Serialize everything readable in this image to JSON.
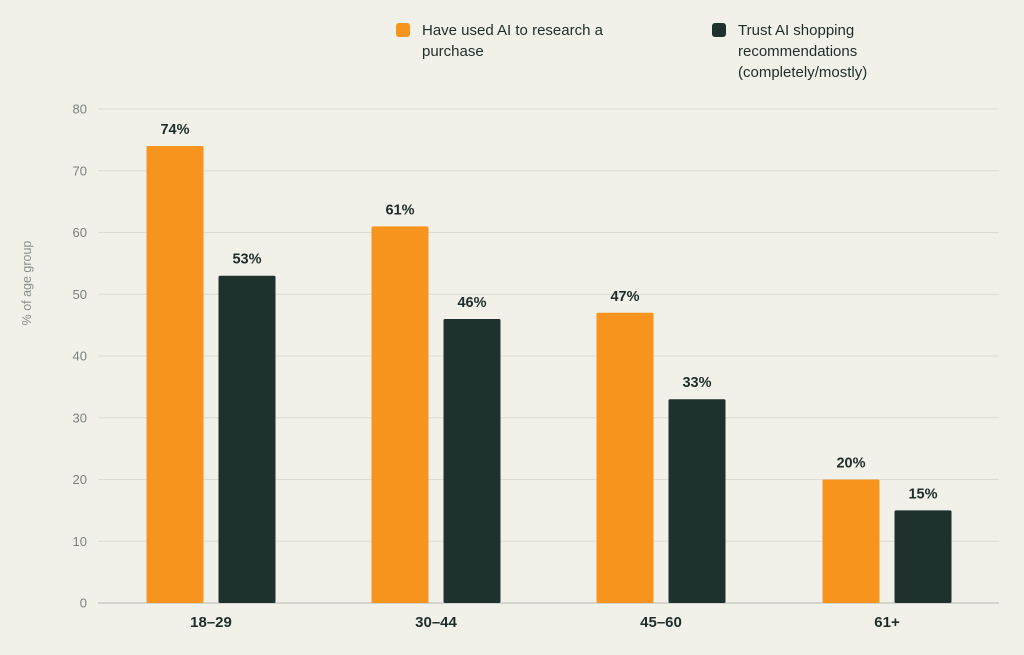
{
  "chart_data": {
    "type": "bar",
    "ylabel": "% of age group",
    "xlabel": "",
    "ylim": [
      0,
      80
    ],
    "yticks": [
      0,
      10,
      20,
      30,
      40,
      50,
      60,
      70,
      80
    ],
    "categories": [
      "18–29",
      "30–44",
      "45–60",
      "61+"
    ],
    "series": [
      {
        "name": "Have used AI to research a purchase",
        "color": "#f7941d",
        "values": [
          74,
          61,
          47,
          20
        ],
        "labels": [
          "74%",
          "61%",
          "47%",
          "20%"
        ]
      },
      {
        "name": "Trust AI shopping recommendations (completely/mostly)",
        "color": "#1e312d",
        "values": [
          53,
          46,
          33,
          15
        ],
        "labels": [
          "53%",
          "46%",
          "33%",
          "15%"
        ]
      }
    ],
    "grid": true,
    "legend_position": "top"
  },
  "colors": {
    "background": "#f1f1ea",
    "gridline": "#dcdcd4",
    "axis": "#bfc2bd",
    "tick_text": "#7b807e",
    "category_text": "#1f2d2a",
    "value_text": "#1f2d2a"
  }
}
